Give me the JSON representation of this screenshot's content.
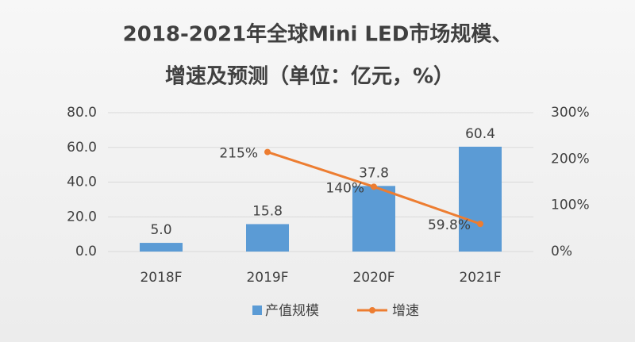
{
  "chart_data": {
    "type": "bar",
    "title": [
      "2018-2021年全球Mini LED市场规模、",
      "增速及预测（单位：亿元，%）"
    ],
    "categories": [
      "2018F",
      "2019F",
      "2020F",
      "2021F"
    ],
    "series": [
      {
        "name": "产值规模",
        "type": "bar",
        "color": "#5b9bd5",
        "values": [
          5.0,
          15.8,
          37.8,
          60.4
        ],
        "value_labels": [
          "5.0",
          "15.8",
          "37.8",
          "60.4"
        ]
      },
      {
        "name": "增速",
        "type": "line",
        "axis": "y2",
        "color": "#ed7d31",
        "values": [
          null,
          215,
          140,
          59.8
        ],
        "value_labels": [
          null,
          "215%",
          "140%",
          "59.8%"
        ]
      }
    ],
    "ylim": [
      0,
      80
    ],
    "yticks": [
      {
        "value": 0,
        "label": "0.0"
      },
      {
        "value": 20,
        "label": "20.0"
      },
      {
        "value": 40,
        "label": "40.0"
      },
      {
        "value": 60,
        "label": "60.0"
      },
      {
        "value": 80,
        "label": "80.0"
      }
    ],
    "y2lim": [
      0,
      300
    ],
    "y2ticks": [
      {
        "value": 0,
        "label": "0%"
      },
      {
        "value": 100,
        "label": "100%"
      },
      {
        "value": 200,
        "label": "200%"
      },
      {
        "value": 300,
        "label": "300%"
      }
    ],
    "grid": true,
    "legend": "bottom"
  }
}
